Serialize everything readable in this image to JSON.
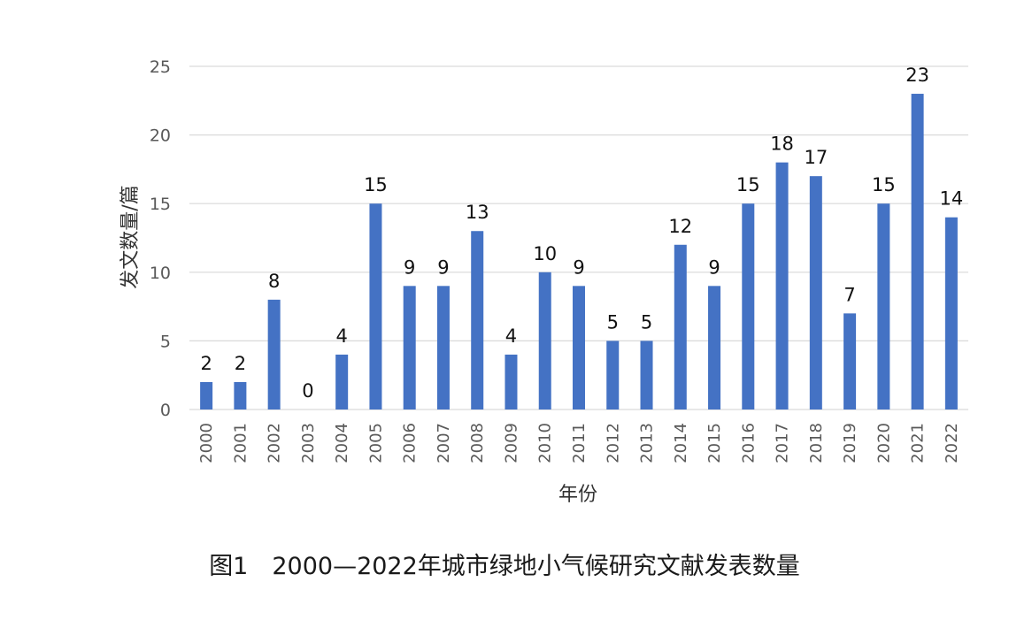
{
  "caption": "图1　2000—2022年城市绿地小气候研究文献发表数量",
  "colors": {
    "bar": "#4472C4",
    "grid": "#d9d9d9",
    "tick_text": "#595959",
    "label_text": "#111111"
  },
  "chart_data": {
    "type": "bar",
    "title": "",
    "xlabel": "年份",
    "ylabel": "发文数量/篇",
    "ylim": [
      0,
      25
    ],
    "yticks": [
      0,
      5,
      10,
      15,
      20,
      25
    ],
    "grid": true,
    "legend": "none",
    "categories": [
      "2000",
      "2001",
      "2002",
      "2003",
      "2004",
      "2005",
      "2006",
      "2007",
      "2008",
      "2009",
      "2010",
      "2011",
      "2012",
      "2013",
      "2014",
      "2015",
      "2016",
      "2017",
      "2018",
      "2019",
      "2020",
      "2021",
      "2022"
    ],
    "values": [
      2,
      2,
      8,
      0,
      4,
      15,
      9,
      9,
      13,
      4,
      10,
      9,
      5,
      5,
      12,
      9,
      15,
      18,
      17,
      7,
      15,
      23,
      14
    ]
  }
}
